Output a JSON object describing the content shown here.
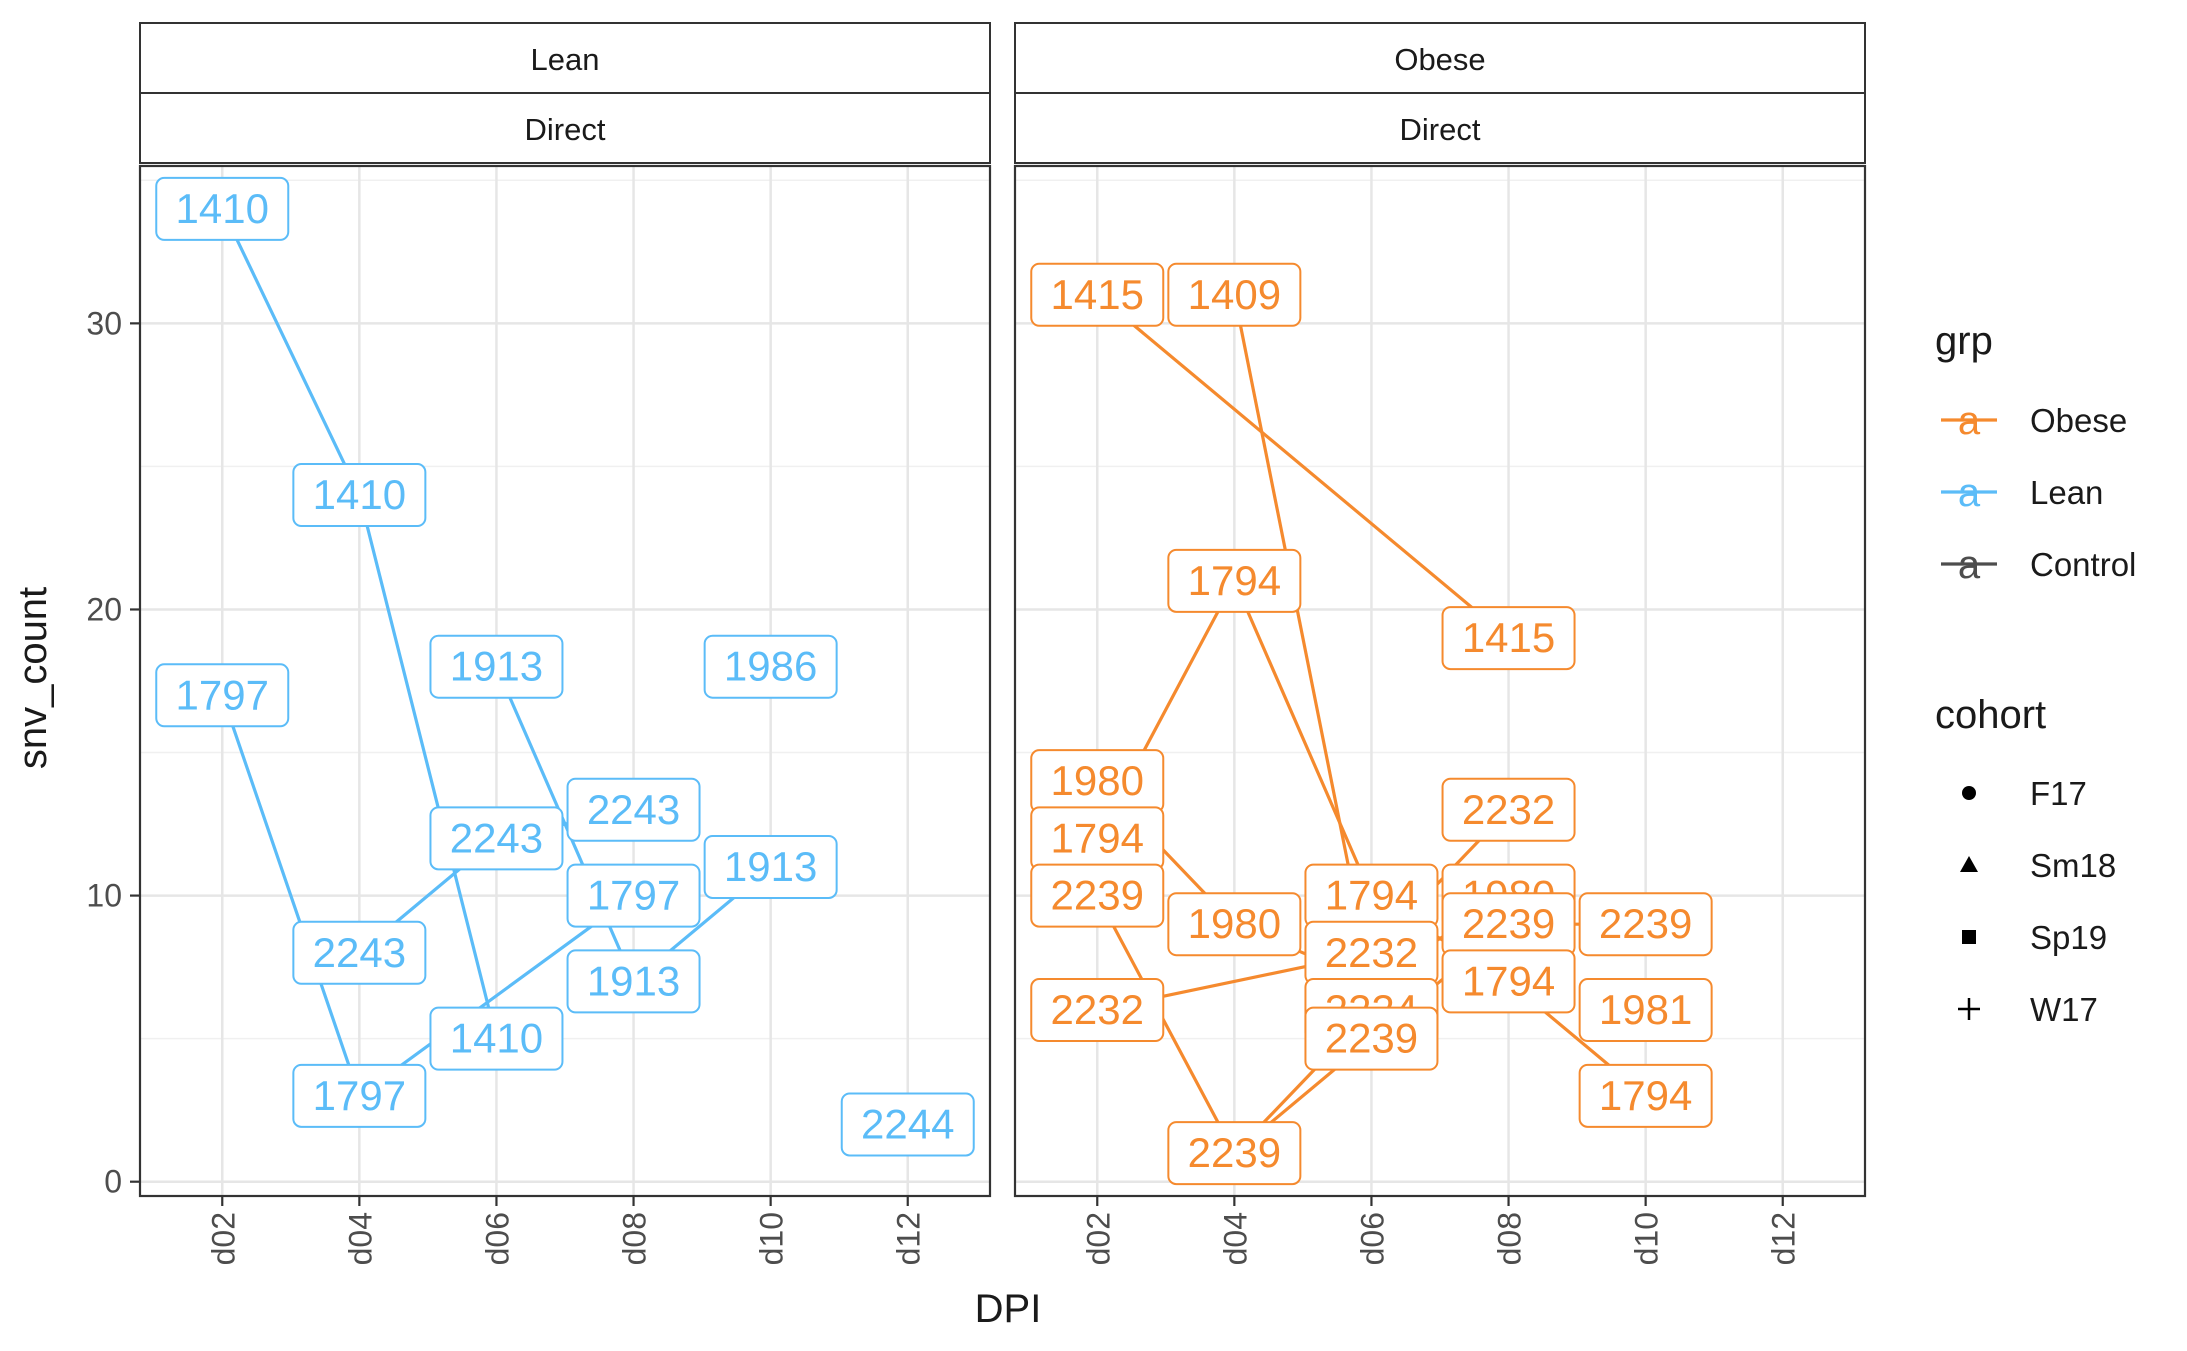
{
  "chart_data": {
    "type": "line",
    "xlabel": "DPI",
    "ylabel": "snv_count",
    "x_categories": [
      "d02",
      "d04",
      "d06",
      "d08",
      "d10",
      "d12"
    ],
    "ylim": [
      -0.5,
      35.5
    ],
    "yticks": [
      0,
      10,
      20,
      30
    ],
    "grid": true,
    "colors": {
      "Obese": "#f58a2e",
      "Lean": "#5bbcf8",
      "Control": "#4d4d4d"
    },
    "legend": {
      "placement": "right",
      "grp": {
        "title": "grp",
        "entries": [
          "Obese",
          "Lean",
          "Control"
        ],
        "key_glyph": "a"
      },
      "cohort": {
        "title": "cohort",
        "entries": [
          "F17",
          "Sm18",
          "Sp19",
          "W17"
        ],
        "shape_icons": [
          "circle",
          "triangle",
          "square",
          "plus"
        ]
      }
    },
    "panels": [
      {
        "strip_top": "Lean",
        "strip_sub": "Direct",
        "grp": "Lean",
        "lines": [
          {
            "id": "1410",
            "points": [
              [
                "d02",
                34
              ],
              [
                "d04",
                24
              ],
              [
                "d06",
                5
              ]
            ]
          },
          {
            "id": "1797",
            "points": [
              [
                "d02",
                17
              ],
              [
                "d04",
                3
              ],
              [
                "d08",
                10
              ]
            ]
          },
          {
            "id": "1913",
            "points": [
              [
                "d06",
                18
              ],
              [
                "d08",
                7
              ],
              [
                "d10",
                11
              ]
            ]
          },
          {
            "id": "2243",
            "points": [
              [
                "d04",
                8
              ],
              [
                "d06",
                12
              ],
              [
                "d08",
                13
              ]
            ]
          },
          {
            "id": "1986",
            "points": [
              [
                "d10",
                18
              ]
            ]
          },
          {
            "id": "2244",
            "points": [
              [
                "d12",
                2
              ]
            ]
          }
        ],
        "labels": [
          {
            "x": "d02",
            "y": 34,
            "text": "1410"
          },
          {
            "x": "d04",
            "y": 24,
            "text": "1410"
          },
          {
            "x": "d06",
            "y": 5,
            "text": "1410"
          },
          {
            "x": "d02",
            "y": 17,
            "text": "1797"
          },
          {
            "x": "d04",
            "y": 3,
            "text": "1797"
          },
          {
            "x": "d08",
            "y": 10,
            "text": "1797"
          },
          {
            "x": "d06",
            "y": 18,
            "text": "1913"
          },
          {
            "x": "d08",
            "y": 7,
            "text": "1913"
          },
          {
            "x": "d10",
            "y": 11,
            "text": "1913"
          },
          {
            "x": "d04",
            "y": 8,
            "text": "2243"
          },
          {
            "x": "d06",
            "y": 12,
            "text": "2243"
          },
          {
            "x": "d08",
            "y": 13,
            "text": "2243"
          },
          {
            "x": "d10",
            "y": 18,
            "text": "1986"
          },
          {
            "x": "d12",
            "y": 2,
            "text": "2244"
          }
        ]
      },
      {
        "strip_top": "Obese",
        "strip_sub": "Direct",
        "grp": "Obese",
        "lines": [
          {
            "id": "1415",
            "points": [
              [
                "d02",
                31
              ],
              [
                "d08",
                19
              ]
            ]
          },
          {
            "id": "1409",
            "points": [
              [
                "d04",
                31
              ],
              [
                "d06",
                7
              ]
            ]
          },
          {
            "id": "1794",
            "points": [
              [
                "d02",
                12
              ],
              [
                "d04",
                21
              ],
              [
                "d06",
                10
              ],
              [
                "d08",
                7
              ],
              [
                "d10",
                3
              ]
            ]
          },
          {
            "id": "1980",
            "points": [
              [
                "d02",
                14
              ],
              [
                "d04",
                9
              ],
              [
                "d06",
                7
              ],
              [
                "d08",
                10
              ]
            ]
          },
          {
            "id": "2239",
            "points": [
              [
                "d02",
                10
              ],
              [
                "d04",
                1
              ],
              [
                "d06",
                5
              ],
              [
                "d08",
                9
              ],
              [
                "d10",
                9
              ]
            ]
          },
          {
            "id": "2232",
            "points": [
              [
                "d02",
                6
              ],
              [
                "d06",
                8
              ],
              [
                "d08",
                13
              ]
            ]
          },
          {
            "id": "2224",
            "points": [
              [
                "d04",
                1
              ],
              [
                "d06",
                6
              ]
            ]
          },
          {
            "id": "1981",
            "points": [
              [
                "d10",
                6
              ]
            ]
          }
        ],
        "labels": [
          {
            "x": "d02",
            "y": 31,
            "text": "1415"
          },
          {
            "x": "d08",
            "y": 19,
            "text": "1415"
          },
          {
            "x": "d04",
            "y": 31,
            "text": "1409"
          },
          {
            "x": "d04",
            "y": 21,
            "text": "1794"
          },
          {
            "x": "d02",
            "y": 14,
            "text": "1980"
          },
          {
            "x": "d02",
            "y": 12,
            "text": "1794"
          },
          {
            "x": "d02",
            "y": 10,
            "text": "2239"
          },
          {
            "x": "d02",
            "y": 6,
            "text": "2232"
          },
          {
            "x": "d04",
            "y": 9,
            "text": "1980"
          },
          {
            "x": "d04",
            "y": 1,
            "text": "2239"
          },
          {
            "x": "d06",
            "y": 10,
            "text": "1794"
          },
          {
            "x": "d06",
            "y": 8,
            "text": "2232"
          },
          {
            "x": "d06",
            "y": 6,
            "text": "2224"
          },
          {
            "x": "d06",
            "y": 5,
            "text": "2239"
          },
          {
            "x": "d08",
            "y": 13,
            "text": "2232"
          },
          {
            "x": "d08",
            "y": 10,
            "text": "1980"
          },
          {
            "x": "d08",
            "y": 9,
            "text": "2239"
          },
          {
            "x": "d08",
            "y": 7,
            "text": "1794"
          },
          {
            "x": "d10",
            "y": 9,
            "text": "2239"
          },
          {
            "x": "d10",
            "y": 6,
            "text": "1981"
          },
          {
            "x": "d10",
            "y": 3,
            "text": "1794"
          }
        ]
      }
    ]
  }
}
